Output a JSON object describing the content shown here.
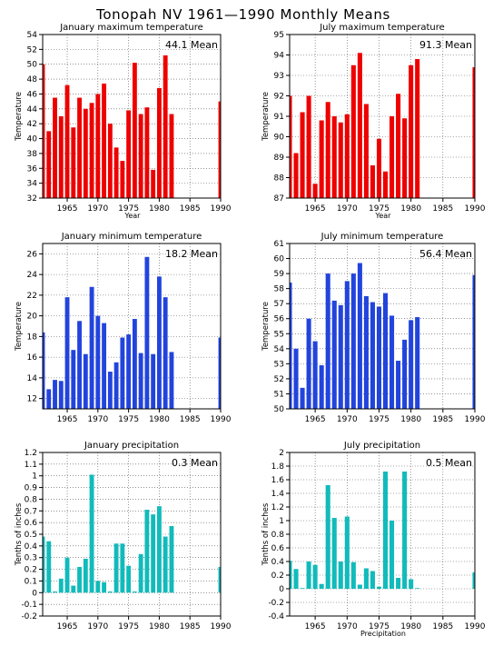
{
  "figure": {
    "title": "Tonopah NV   1961—1990 Monthly Means"
  },
  "chart_data": [
    {
      "type": "bar",
      "title": "January maximum temperature",
      "ylabel": "Temperature",
      "xlabel": "Year",
      "color": "#ee0000",
      "ylim": [
        32,
        54
      ],
      "yticks": [
        32,
        34,
        36,
        38,
        40,
        42,
        44,
        46,
        48,
        50,
        52,
        54
      ],
      "ytick_labels": [
        "32",
        "34",
        "36",
        "38",
        "40",
        "42",
        "44",
        "46",
        "48",
        "50",
        "52",
        "54"
      ],
      "xticks": [
        1965,
        1970,
        1975,
        1980,
        1985,
        1990
      ],
      "mean_label": "44.1 Mean",
      "years": [
        1961,
        1962,
        1963,
        1964,
        1965,
        1966,
        1967,
        1968,
        1969,
        1970,
        1971,
        1972,
        1973,
        1974,
        1975,
        1976,
        1977,
        1978,
        1979,
        1980,
        1981,
        1982,
        1990
      ],
      "values": [
        50.0,
        41.0,
        45.5,
        43.0,
        47.2,
        41.5,
        45.5,
        44.0,
        44.8,
        46.0,
        47.4,
        42.0,
        38.8,
        37.0,
        43.8,
        50.2,
        43.3,
        44.2,
        35.8,
        46.8,
        51.2,
        43.3,
        45.0
      ]
    },
    {
      "type": "bar",
      "title": "July maximum temperature",
      "ylabel": "Temperature",
      "xlabel": "Year",
      "color": "#ee0000",
      "ylim": [
        87,
        95
      ],
      "yticks": [
        87,
        88,
        89,
        90,
        91,
        92,
        93,
        94,
        95
      ],
      "ytick_labels": [
        "87",
        "88",
        "89",
        "90",
        "91",
        "92",
        "93",
        "94",
        "95"
      ],
      "xticks": [
        1965,
        1970,
        1975,
        1980,
        1985,
        1990
      ],
      "mean_label": "91.3 Mean",
      "years": [
        1961,
        1962,
        1963,
        1964,
        1965,
        1966,
        1967,
        1968,
        1969,
        1970,
        1971,
        1972,
        1973,
        1974,
        1975,
        1976,
        1977,
        1978,
        1979,
        1980,
        1981,
        1990
      ],
      "values": [
        92.0,
        89.2,
        91.2,
        92.0,
        87.7,
        90.8,
        91.7,
        91.0,
        90.7,
        91.1,
        93.5,
        94.1,
        91.6,
        88.6,
        89.9,
        88.3,
        91.0,
        92.1,
        90.9,
        93.5,
        93.8,
        93.4
      ]
    },
    {
      "type": "bar",
      "title": "January minimum temperature",
      "ylabel": "Temperature",
      "xlabel": "",
      "color": "#2244dd",
      "ylim": [
        11,
        27
      ],
      "yticks": [
        12,
        14,
        16,
        18,
        20,
        22,
        24,
        26
      ],
      "ytick_labels": [
        "12",
        "14",
        "16",
        "18",
        "20",
        "22",
        "24",
        "26"
      ],
      "xticks": [
        1965,
        1970,
        1975,
        1980,
        1985,
        1990
      ],
      "mean_label": "18.2 Mean",
      "years": [
        1961,
        1962,
        1963,
        1964,
        1965,
        1966,
        1967,
        1968,
        1969,
        1970,
        1971,
        1972,
        1973,
        1974,
        1975,
        1976,
        1977,
        1978,
        1979,
        1980,
        1981,
        1982,
        1990
      ],
      "values": [
        18.4,
        12.9,
        13.8,
        13.7,
        21.8,
        16.7,
        19.5,
        16.3,
        22.8,
        20.0,
        19.3,
        14.6,
        15.5,
        17.9,
        18.2,
        19.7,
        16.4,
        25.7,
        16.3,
        23.8,
        21.8,
        16.5,
        17.9
      ]
    },
    {
      "type": "bar",
      "title": "July minimum temperature",
      "ylabel": "Temperature",
      "xlabel": "",
      "color": "#2244dd",
      "ylim": [
        50,
        61
      ],
      "yticks": [
        50,
        51,
        52,
        53,
        54,
        55,
        56,
        57,
        58,
        59,
        60,
        61
      ],
      "ytick_labels": [
        "50",
        "51",
        "52",
        "53",
        "54",
        "55",
        "56",
        "57",
        "58",
        "59",
        "60",
        "61"
      ],
      "xticks": [
        1965,
        1970,
        1975,
        1980,
        1985,
        1990
      ],
      "mean_label": "56.4 Mean",
      "years": [
        1961,
        1962,
        1963,
        1964,
        1965,
        1966,
        1967,
        1968,
        1969,
        1970,
        1971,
        1972,
        1973,
        1974,
        1975,
        1976,
        1977,
        1978,
        1979,
        1980,
        1981,
        1990
      ],
      "values": [
        58.4,
        54.0,
        51.4,
        56.0,
        54.5,
        52.9,
        59.0,
        57.2,
        56.9,
        58.5,
        59.0,
        59.7,
        57.5,
        57.1,
        56.8,
        57.7,
        56.2,
        53.2,
        54.6,
        55.9,
        56.1,
        58.9
      ]
    },
    {
      "type": "bar",
      "title": "January precipitation",
      "ylabel": "Tenths of inches",
      "xlabel": "",
      "color": "#11bbbb",
      "ylim": [
        -0.2,
        1.2
      ],
      "yticks": [
        -0.2,
        -0.1,
        0,
        0.1,
        0.2,
        0.3,
        0.4,
        0.5,
        0.6,
        0.7,
        0.8,
        0.9,
        1.0,
        1.1,
        1.2
      ],
      "ytick_labels": [
        "-0.2",
        "-0.1",
        "0",
        "0.1",
        "0.2",
        "0.3",
        "0.4",
        "0.5",
        "0.6",
        "0.7",
        "0.8",
        "0.9",
        "1",
        "1.1",
        "1.2"
      ],
      "xticks": [
        1965,
        1970,
        1975,
        1980,
        1985,
        1990
      ],
      "mean_label": "0.3 Mean",
      "years": [
        1961,
        1962,
        1963,
        1964,
        1965,
        1966,
        1967,
        1968,
        1969,
        1970,
        1971,
        1972,
        1973,
        1974,
        1975,
        1976,
        1977,
        1978,
        1979,
        1980,
        1981,
        1982,
        1990
      ],
      "values": [
        0.48,
        0.44,
        0.01,
        0.12,
        0.3,
        0.06,
        0.22,
        0.29,
        1.01,
        0.1,
        0.09,
        0.01,
        0.42,
        0.42,
        0.23,
        0.01,
        0.33,
        0.71,
        0.67,
        0.74,
        0.48,
        0.57,
        0.22
      ]
    },
    {
      "type": "bar",
      "title": "July precipitation",
      "ylabel": "Tenths of inches",
      "xlabel": "Precipitation",
      "color": "#11bbbb",
      "ylim": [
        -0.4,
        2.0
      ],
      "yticks": [
        -0.4,
        -0.2,
        0,
        0.2,
        0.4,
        0.6,
        0.8,
        1.0,
        1.2,
        1.4,
        1.6,
        1.8,
        2.0
      ],
      "ytick_labels": [
        "-0.4",
        "-0.2",
        "0",
        "0.2",
        "0.4",
        "0.6",
        "0.8",
        "1",
        "1.2",
        "1.4",
        "1.6",
        "1.8",
        "2"
      ],
      "xticks": [
        1965,
        1970,
        1975,
        1980,
        1985,
        1990
      ],
      "mean_label": "0.5 Mean",
      "years": [
        1961,
        1962,
        1963,
        1964,
        1965,
        1966,
        1967,
        1968,
        1969,
        1970,
        1971,
        1972,
        1973,
        1974,
        1975,
        1976,
        1977,
        1978,
        1979,
        1980,
        1981,
        1990
      ],
      "values": [
        0.41,
        0.29,
        0.01,
        0.4,
        0.35,
        0.07,
        1.52,
        1.04,
        0.4,
        1.06,
        0.39,
        0.06,
        0.3,
        0.26,
        0.03,
        1.72,
        1.0,
        0.16,
        1.72,
        0.14,
        0.01,
        0.24
      ]
    }
  ]
}
